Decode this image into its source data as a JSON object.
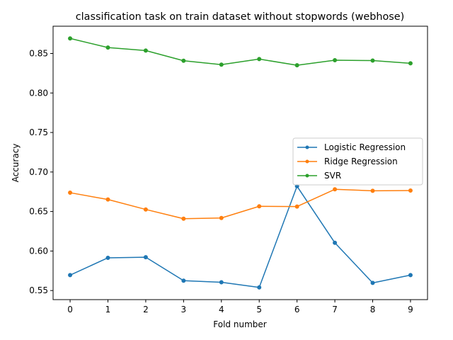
{
  "chart_data": {
    "type": "line",
    "title": "classification task on train dataset without stopwords (webhose)",
    "xlabel": "Fold number",
    "ylabel": "Accuracy",
    "x": [
      0,
      1,
      2,
      3,
      4,
      5,
      6,
      7,
      8,
      9
    ],
    "xticks": [
      "0",
      "1",
      "2",
      "3",
      "4",
      "5",
      "6",
      "7",
      "8",
      "9"
    ],
    "yticks": [
      "0.55",
      "0.60",
      "0.65",
      "0.70",
      "0.75",
      "0.80",
      "0.85"
    ],
    "ytick_values": [
      0.55,
      0.6,
      0.65,
      0.7,
      0.75,
      0.8,
      0.85
    ],
    "xlim": [
      -0.45,
      9.45
    ],
    "ylim": [
      0.5385,
      0.8845
    ],
    "grid": false,
    "legend_position": "center-right",
    "series": [
      {
        "name": "Logistic Regression",
        "color": "#1f77b4",
        "marker": "circle",
        "values": [
          0.5695,
          0.5914,
          0.5922,
          0.5625,
          0.5605,
          0.554,
          0.682,
          0.6104,
          0.5597,
          0.5695
        ]
      },
      {
        "name": "Ridge Regression",
        "color": "#ff7f0e",
        "marker": "circle",
        "values": [
          0.6738,
          0.6652,
          0.6526,
          0.6409,
          0.6418,
          0.6566,
          0.6563,
          0.6781,
          0.6762,
          0.6765
        ]
      },
      {
        "name": "SVR",
        "color": "#2ca02c",
        "marker": "circle",
        "values": [
          0.869,
          0.8575,
          0.8537,
          0.8408,
          0.8359,
          0.8429,
          0.8351,
          0.8415,
          0.841,
          0.8376
        ]
      }
    ]
  }
}
